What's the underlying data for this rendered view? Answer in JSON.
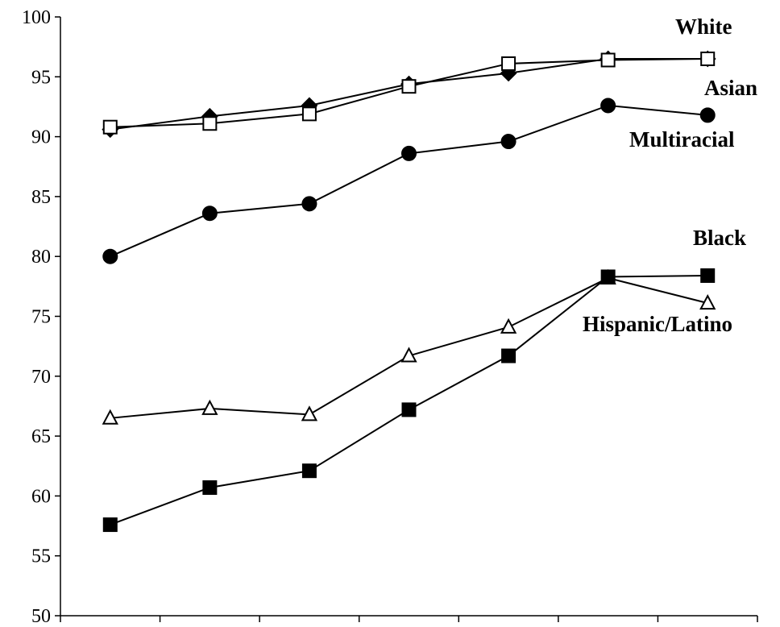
{
  "chart_data": {
    "type": "line",
    "title": "",
    "xlabel": "",
    "ylabel": "",
    "ylim": [
      50,
      100
    ],
    "yticks": [
      50,
      55,
      60,
      65,
      70,
      75,
      80,
      85,
      90,
      95,
      100
    ],
    "x": [
      1,
      2,
      3,
      4,
      5,
      6,
      7
    ],
    "grid": false,
    "series": [
      {
        "name": "Asian",
        "marker": "diamond",
        "fill": "#000000",
        "values": [
          90.6,
          91.7,
          92.6,
          94.4,
          95.3,
          96.5,
          96.5
        ]
      },
      {
        "name": "White",
        "marker": "square-open",
        "fill": "#ffffff",
        "values": [
          90.8,
          91.1,
          91.9,
          94.2,
          96.1,
          96.4,
          96.5
        ]
      },
      {
        "name": "Multiracial",
        "marker": "circle",
        "fill": "#000000",
        "values": [
          80.0,
          83.6,
          84.4,
          88.6,
          89.6,
          92.6,
          91.8
        ]
      },
      {
        "name": "Hispanic/Latino",
        "marker": "triangle-open",
        "fill": "#ffffff",
        "values": [
          66.5,
          67.3,
          66.8,
          71.7,
          74.1,
          78.2,
          76.1
        ]
      },
      {
        "name": "Black",
        "marker": "square",
        "fill": "#000000",
        "values": [
          57.6,
          60.7,
          62.1,
          67.2,
          71.7,
          78.3,
          78.4
        ]
      }
    ]
  }
}
